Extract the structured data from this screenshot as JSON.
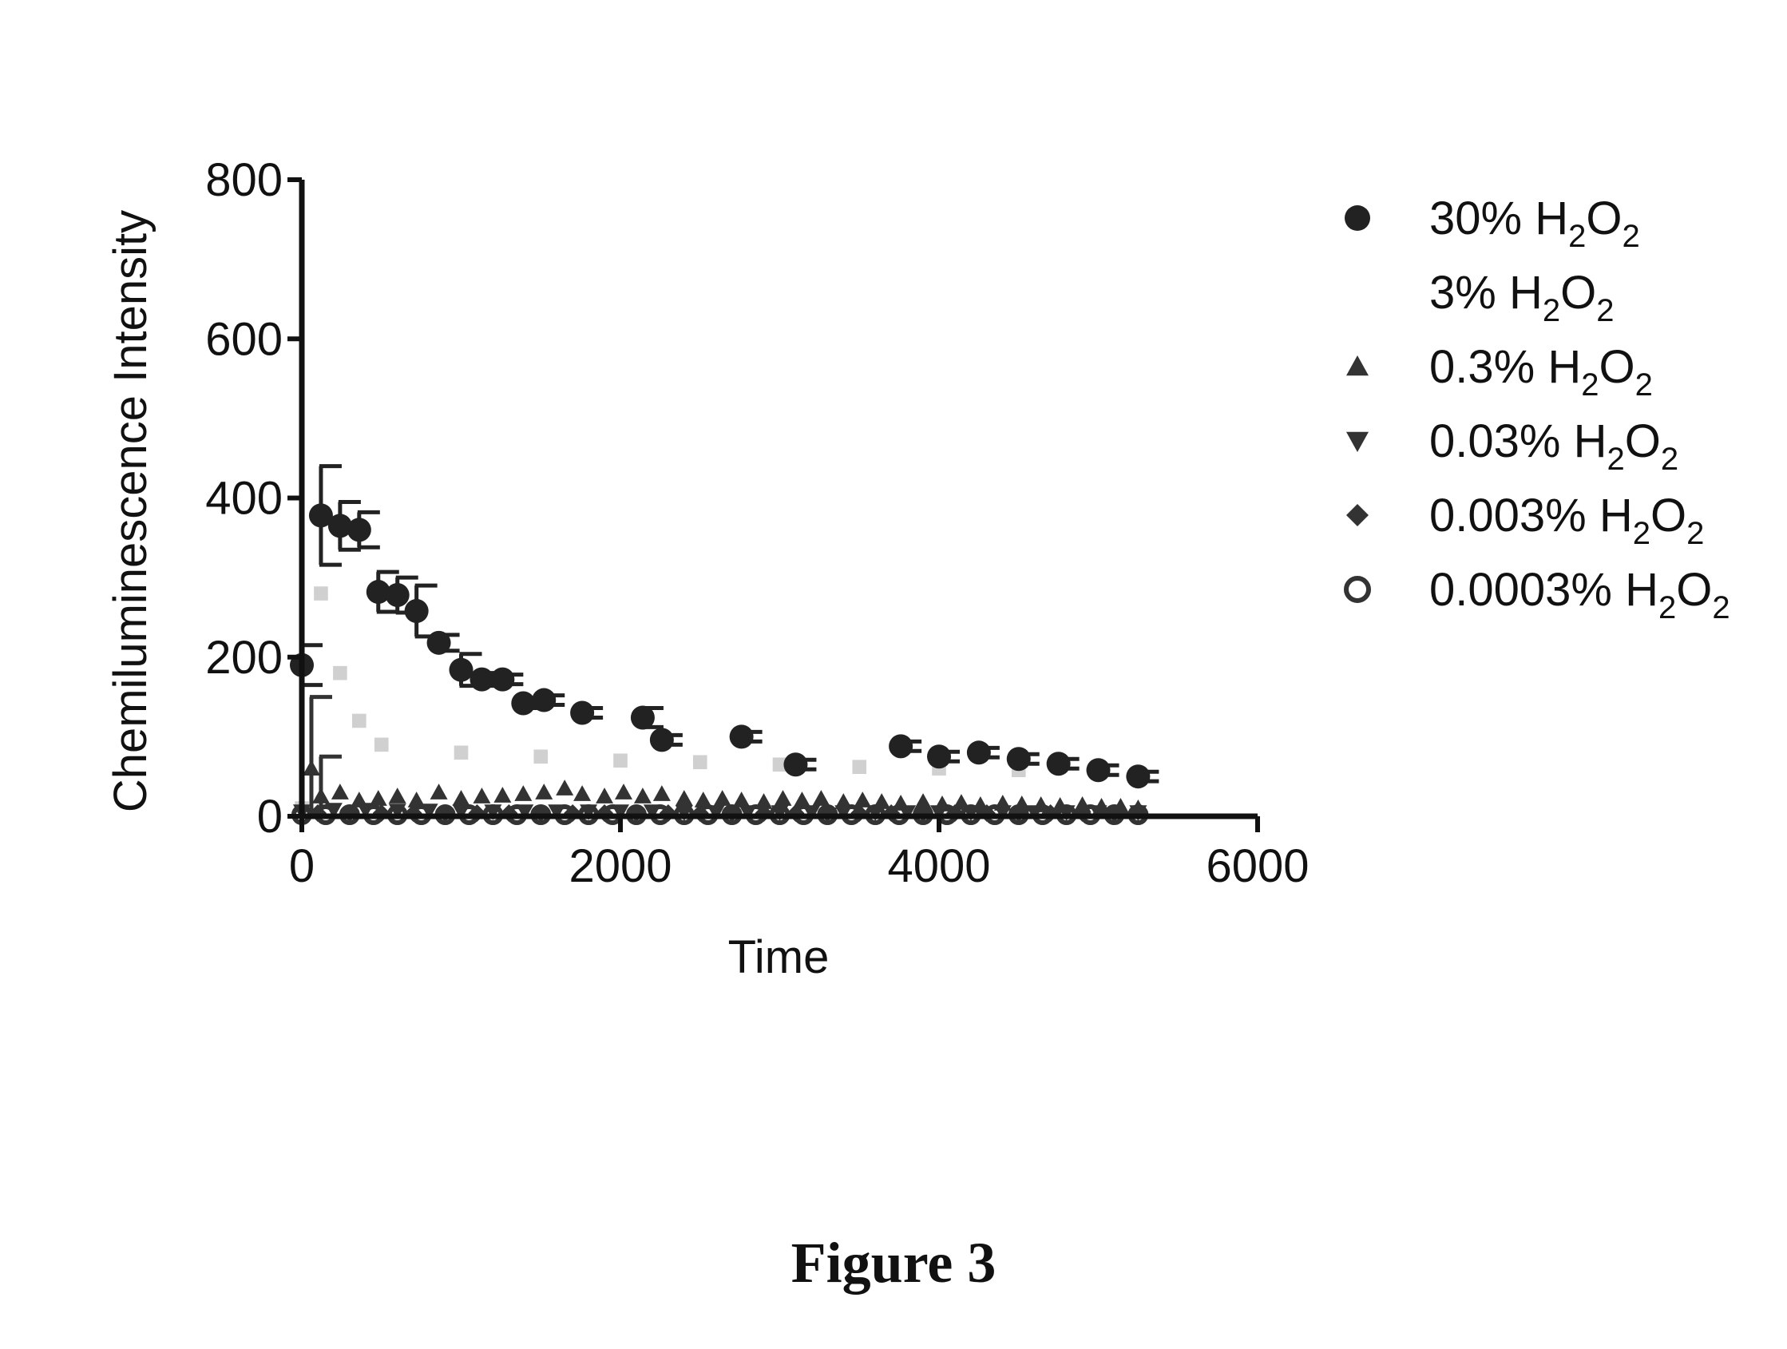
{
  "chart_data": {
    "type": "scatter",
    "title": "",
    "xlabel": "Time",
    "ylabel": "Chemiluminescence Intensity",
    "xlim": [
      0,
      6000
    ],
    "ylim": [
      0,
      800
    ],
    "xticks": [
      "0",
      "2000",
      "4000",
      "6000"
    ],
    "yticks": [
      "0",
      "200",
      "400",
      "600",
      "800"
    ],
    "grid": false,
    "legend_position": "right",
    "series": [
      {
        "name": "30% H2O2",
        "label_main": "30% H",
        "label_sub1": "2",
        "label_mid": "O",
        "label_sub2": "2",
        "marker": "filled-circle",
        "color": "#222222",
        "x": [
          0,
          120,
          240,
          360,
          480,
          600,
          720,
          860,
          1000,
          1130,
          1260,
          1390,
          1520,
          1760,
          2140,
          2260,
          2760,
          3100,
          3760,
          4000,
          4250,
          4500,
          4750,
          5000,
          5250
        ],
        "y": [
          190,
          378,
          365,
          360,
          282,
          278,
          258,
          218,
          184,
          172,
          172,
          142,
          146,
          130,
          124,
          96,
          100,
          65,
          88,
          75,
          80,
          72,
          66,
          58,
          50
        ],
        "error": [
          25,
          62,
          30,
          22,
          25,
          22,
          32,
          10,
          20,
          8,
          6,
          6,
          6,
          6,
          12,
          6,
          6,
          6,
          6,
          6,
          6,
          6,
          6,
          6,
          6
        ]
      },
      {
        "name": "3% H2O2",
        "label_main": "3% H",
        "label_sub1": "2",
        "label_mid": "O",
        "label_sub2": "2",
        "marker": "faint-square",
        "color": "#d0d0d0",
        "x": [
          0,
          120,
          240,
          360,
          500,
          1000,
          1500,
          2000,
          2500,
          3000,
          3500,
          4000,
          4500,
          5000,
          5250
        ],
        "y": [
          10,
          280,
          180,
          120,
          90,
          80,
          75,
          70,
          68,
          65,
          62,
          60,
          58,
          55,
          50
        ],
        "error": [
          0,
          0,
          0,
          0,
          0,
          0,
          0,
          0,
          0,
          0,
          0,
          0,
          0,
          0,
          0
        ]
      },
      {
        "name": "0.3% H2O2",
        "label_main": "0.3% H",
        "label_sub1": "2",
        "label_mid": "O",
        "label_sub2": "2",
        "marker": "triangle-up",
        "color": "#333333",
        "x": [
          60,
          120,
          240,
          360,
          480,
          600,
          720,
          860,
          1000,
          1130,
          1260,
          1390,
          1520,
          1650,
          1760,
          1900,
          2020,
          2140,
          2260,
          2400,
          2520,
          2640,
          2760,
          2900,
          3020,
          3140,
          3260,
          3400,
          3520,
          3640,
          3760,
          3900,
          4020,
          4140,
          4260,
          4400,
          4520,
          4640,
          4760,
          4900,
          5020,
          5140,
          5250
        ],
        "y": [
          60,
          25,
          30,
          20,
          22,
          25,
          20,
          30,
          22,
          25,
          26,
          28,
          30,
          35,
          28,
          25,
          30,
          25,
          28,
          22,
          20,
          22,
          20,
          18,
          22,
          20,
          22,
          18,
          20,
          18,
          16,
          18,
          15,
          17,
          14,
          16,
          15,
          14,
          13,
          14,
          12,
          12,
          10
        ],
        "error": [
          90,
          50,
          0,
          0,
          0,
          0,
          0,
          0,
          0,
          0,
          0,
          0,
          0,
          0,
          0,
          0,
          0,
          0,
          0,
          0,
          0,
          0,
          0,
          0,
          0,
          0,
          0,
          0,
          0,
          0,
          0,
          0,
          0,
          0,
          0,
          0,
          0,
          0,
          0,
          0,
          0,
          0,
          0
        ]
      },
      {
        "name": "0.03% H2O2",
        "label_main": "0.03% H",
        "label_sub1": "2",
        "label_mid": "O",
        "label_sub2": "2",
        "marker": "triangle-down",
        "color": "#333333",
        "x": [
          0,
          200,
          400,
          600,
          800,
          1000,
          1200,
          1400,
          1600,
          1800,
          2000,
          2200,
          2400,
          2600,
          2800,
          3000,
          3200,
          3400,
          3600,
          3800,
          4000,
          4200,
          4400,
          4600,
          4800,
          5000,
          5250
        ],
        "y": [
          6,
          8,
          8,
          7,
          7,
          6,
          6,
          6,
          6,
          6,
          6,
          6,
          5,
          5,
          5,
          5,
          5,
          5,
          5,
          5,
          5,
          5,
          5,
          5,
          5,
          5,
          5
        ],
        "error": [
          0,
          0,
          0,
          0,
          0,
          0,
          0,
          0,
          0,
          0,
          0,
          0,
          0,
          0,
          0,
          0,
          0,
          0,
          0,
          0,
          0,
          0,
          0,
          0,
          0,
          0,
          0
        ]
      },
      {
        "name": "0.003% H2O2",
        "label_main": "0.003% H",
        "label_sub1": "2",
        "label_mid": "O",
        "label_sub2": "2",
        "marker": "diamond",
        "color": "#333333",
        "x": [
          100,
          300,
          500,
          700,
          900,
          1100,
          1300,
          1500,
          1700,
          1900,
          2100,
          2300,
          2500,
          2700,
          2900,
          3100,
          3300,
          3500,
          3700,
          3900,
          4100,
          4300,
          4500,
          4700,
          4900,
          5100
        ],
        "y": [
          4,
          4,
          4,
          4,
          4,
          4,
          4,
          4,
          4,
          4,
          4,
          4,
          4,
          4,
          4,
          4,
          4,
          4,
          4,
          4,
          4,
          4,
          4,
          4,
          4,
          4
        ],
        "error": [
          0,
          0,
          0,
          0,
          0,
          0,
          0,
          0,
          0,
          0,
          0,
          0,
          0,
          0,
          0,
          0,
          0,
          0,
          0,
          0,
          0,
          0,
          0,
          0,
          0,
          0
        ]
      },
      {
        "name": "0.0003% H2O2",
        "label_main": "0.0003% H",
        "label_sub1": "2",
        "label_mid": "O",
        "label_sub2": "2",
        "marker": "open-circle",
        "color": "#333333",
        "x": [
          0,
          150,
          300,
          450,
          600,
          750,
          900,
          1050,
          1200,
          1350,
          1500,
          1650,
          1800,
          1950,
          2100,
          2250,
          2400,
          2550,
          2700,
          2850,
          3000,
          3150,
          3300,
          3450,
          3600,
          3750,
          3900,
          4050,
          4200,
          4350,
          4500,
          4650,
          4800,
          4950,
          5100,
          5250
        ],
        "y": [
          2,
          2,
          2,
          2,
          2,
          2,
          2,
          2,
          2,
          2,
          2,
          2,
          2,
          2,
          2,
          2,
          2,
          2,
          2,
          2,
          2,
          2,
          2,
          2,
          2,
          2,
          2,
          2,
          2,
          2,
          2,
          2,
          2,
          2,
          2,
          2
        ],
        "error": [
          0,
          0,
          0,
          0,
          0,
          0,
          0,
          0,
          0,
          0,
          0,
          0,
          0,
          0,
          0,
          0,
          0,
          0,
          0,
          0,
          0,
          0,
          0,
          0,
          0,
          0,
          0,
          0,
          0,
          0,
          0,
          0,
          0,
          0,
          0,
          0
        ]
      }
    ]
  },
  "caption": "Figure 3"
}
